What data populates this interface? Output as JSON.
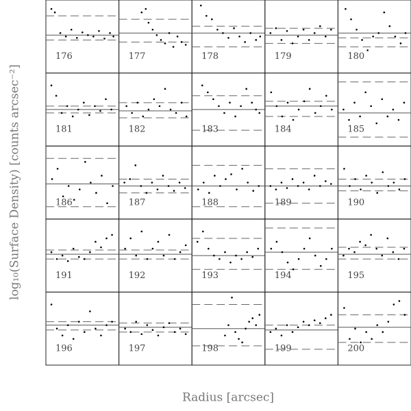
{
  "axes": {
    "xlabel": "Radius [arcsec]",
    "ylabel": "log₁₀(Surface Density) [counts arcsec⁻²]"
  },
  "chart_data": [
    {
      "type": "scatter",
      "label": "176",
      "xlim": [
        0,
        1
      ],
      "ylim": [
        0,
        1
      ],
      "solid": 0.52,
      "dashed": [
        0.8,
        0.45
      ],
      "x": [
        0.05,
        0.1,
        0.18,
        0.26,
        0.34,
        0.42,
        0.5,
        0.58,
        0.66,
        0.74,
        0.82,
        0.9,
        0.95
      ],
      "y": [
        0.9,
        0.85,
        0.55,
        0.5,
        0.6,
        0.48,
        0.56,
        0.52,
        0.5,
        0.58,
        0.47,
        0.55,
        0.5
      ]
    },
    {
      "type": "scatter",
      "label": "177",
      "xlim": [
        0,
        1
      ],
      "ylim": [
        0,
        1
      ],
      "solid": 0.55,
      "dashed": [
        0.75,
        0.42
      ],
      "x": [
        0.3,
        0.36,
        0.4,
        0.46,
        0.52,
        0.58,
        0.64,
        0.7,
        0.76,
        0.82,
        0.88,
        0.94
      ],
      "y": [
        0.85,
        0.9,
        0.7,
        0.6,
        0.52,
        0.45,
        0.4,
        0.55,
        0.35,
        0.5,
        0.42,
        0.38
      ]
    },
    {
      "type": "scatter",
      "label": "178",
      "xlim": [
        0,
        1
      ],
      "ylim": [
        0,
        1
      ],
      "solid": 0.55,
      "dashed": [
        0.65,
        0.35
      ],
      "x": [
        0.1,
        0.18,
        0.26,
        0.34,
        0.42,
        0.5,
        0.58,
        0.66,
        0.74,
        0.82,
        0.9,
        0.96
      ],
      "y": [
        0.95,
        0.8,
        0.75,
        0.6,
        0.55,
        0.48,
        0.62,
        0.5,
        0.42,
        0.55,
        0.45,
        0.5
      ]
    },
    {
      "type": "scatter",
      "label": "179",
      "xlim": [
        0,
        1
      ],
      "ylim": [
        0,
        1
      ],
      "solid": 0.52,
      "dashed": [
        0.62,
        0.4
      ],
      "x": [
        0.05,
        0.13,
        0.21,
        0.29,
        0.37,
        0.45,
        0.53,
        0.61,
        0.69,
        0.77,
        0.85,
        0.93
      ],
      "y": [
        0.55,
        0.62,
        0.45,
        0.58,
        0.4,
        0.5,
        0.6,
        0.45,
        0.55,
        0.65,
        0.5,
        0.6
      ]
    },
    {
      "type": "scatter",
      "label": "180",
      "xlim": [
        0,
        1
      ],
      "ylim": [
        0,
        1
      ],
      "solid": 0.55,
      "dashed": [
        0.48,
        0.35
      ],
      "x": [
        0.08,
        0.16,
        0.24,
        0.32,
        0.4,
        0.48,
        0.56,
        0.64,
        0.72,
        0.8,
        0.88,
        0.95
      ],
      "y": [
        0.9,
        0.75,
        0.6,
        0.45,
        0.3,
        0.5,
        0.55,
        0.85,
        0.65,
        0.5,
        0.4,
        0.55
      ]
    },
    {
      "type": "scatter",
      "label": "181",
      "xlim": [
        0,
        1
      ],
      "ylim": [
        0,
        1
      ],
      "solid": 0.5,
      "dashed": [
        0.55,
        0.45
      ],
      "x": [
        0.05,
        0.12,
        0.2,
        0.28,
        0.36,
        0.44,
        0.52,
        0.6,
        0.68,
        0.76,
        0.84,
        0.92
      ],
      "y": [
        0.85,
        0.7,
        0.45,
        0.55,
        0.4,
        0.5,
        0.6,
        0.42,
        0.55,
        0.48,
        0.65,
        0.5
      ]
    },
    {
      "type": "scatter",
      "label": "182",
      "xlim": [
        0,
        1
      ],
      "ylim": [
        0,
        1
      ],
      "solid": 0.48,
      "dashed": [
        0.6,
        0.38
      ],
      "x": [
        0.08,
        0.16,
        0.24,
        0.32,
        0.4,
        0.48,
        0.56,
        0.64,
        0.72,
        0.8,
        0.88,
        0.95
      ],
      "y": [
        0.55,
        0.45,
        0.6,
        0.4,
        0.5,
        0.65,
        0.55,
        0.8,
        0.5,
        0.45,
        0.6,
        0.4
      ]
    },
    {
      "type": "scatter",
      "label": "183",
      "xlim": [
        0,
        1
      ],
      "ylim": [
        0,
        1
      ],
      "solid": 0.5,
      "dashed": [
        0.7,
        0.2
      ],
      "x": [
        0.12,
        0.2,
        0.28,
        0.36,
        0.44,
        0.52,
        0.6,
        0.68,
        0.76,
        0.84,
        0.9,
        0.95
      ],
      "y": [
        0.85,
        0.75,
        0.65,
        0.55,
        0.45,
        0.6,
        0.4,
        0.55,
        0.8,
        0.6,
        0.5,
        0.45
      ]
    },
    {
      "type": "scatter",
      "label": "184",
      "xlim": [
        0,
        1
      ],
      "ylim": [
        0,
        1
      ],
      "solid": 0.55,
      "dashed": [
        0.62,
        0.4
      ],
      "x": [
        0.06,
        0.14,
        0.22,
        0.3,
        0.38,
        0.46,
        0.54,
        0.62,
        0.7,
        0.78,
        0.86,
        0.94
      ],
      "y": [
        0.75,
        0.55,
        0.4,
        0.6,
        0.35,
        0.5,
        0.62,
        0.8,
        0.45,
        0.55,
        0.7,
        0.5
      ]
    },
    {
      "type": "scatter",
      "label": "185",
      "xlim": [
        0,
        1
      ],
      "ylim": [
        0,
        1
      ],
      "solid": 0.45,
      "dashed": [
        0.9,
        0.1
      ],
      "x": [
        0.05,
        0.13,
        0.21,
        0.29,
        0.37,
        0.45,
        0.53,
        0.61,
        0.69,
        0.77,
        0.85,
        0.93
      ],
      "y": [
        0.5,
        0.35,
        0.6,
        0.4,
        0.75,
        0.55,
        0.3,
        0.65,
        0.4,
        0.5,
        0.35,
        0.6
      ]
    },
    {
      "type": "scatter",
      "label": "186",
      "xlim": [
        0,
        1
      ],
      "ylim": [
        0,
        1
      ],
      "solid": 0.48,
      "dashed": [
        0.85,
        0.15
      ],
      "x": [
        0.06,
        0.14,
        0.22,
        0.3,
        0.38,
        0.46,
        0.54,
        0.62,
        0.7,
        0.78,
        0.86,
        0.94
      ],
      "y": [
        0.55,
        0.7,
        0.3,
        0.45,
        0.25,
        0.4,
        0.8,
        0.5,
        0.35,
        0.6,
        0.2,
        0.45
      ]
    },
    {
      "type": "scatter",
      "label": "187",
      "xlim": [
        0,
        1
      ],
      "ylim": [
        0,
        1
      ],
      "solid": 0.45,
      "dashed": [
        0.55,
        0.35
      ],
      "x": [
        0.05,
        0.13,
        0.21,
        0.29,
        0.37,
        0.45,
        0.53,
        0.61,
        0.69,
        0.77,
        0.85,
        0.93
      ],
      "y": [
        0.5,
        0.55,
        0.75,
        0.45,
        0.35,
        0.5,
        0.4,
        0.6,
        0.45,
        0.38,
        0.5,
        0.42
      ]
    },
    {
      "type": "scatter",
      "label": "188",
      "xlim": [
        0,
        1
      ],
      "ylim": [
        0,
        1
      ],
      "solid": 0.45,
      "dashed": [
        0.75,
        0.15
      ],
      "x": [
        0.06,
        0.14,
        0.22,
        0.3,
        0.38,
        0.46,
        0.54,
        0.62,
        0.7,
        0.78,
        0.86,
        0.94
      ],
      "y": [
        0.4,
        0.5,
        0.35,
        0.6,
        0.45,
        0.55,
        0.62,
        0.4,
        0.7,
        0.5,
        0.38,
        0.45
      ]
    },
    {
      "type": "scatter",
      "label": "189",
      "xlim": [
        0,
        1
      ],
      "ylim": [
        0,
        1
      ],
      "solid": 0.45,
      "dashed": [
        0.7,
        0.2
      ],
      "x": [
        0.05,
        0.13,
        0.21,
        0.29,
        0.37,
        0.45,
        0.53,
        0.61,
        0.69,
        0.77,
        0.85,
        0.93
      ],
      "y": [
        0.45,
        0.4,
        0.5,
        0.42,
        0.55,
        0.45,
        0.5,
        0.4,
        0.6,
        0.45,
        0.52,
        0.48
      ]
    },
    {
      "type": "scatter",
      "label": "190",
      "xlim": [
        0,
        1
      ],
      "ylim": [
        0,
        1
      ],
      "solid": 0.45,
      "dashed": [
        0.55,
        0.38
      ],
      "x": [
        0.06,
        0.14,
        0.22,
        0.3,
        0.38,
        0.46,
        0.54,
        0.62,
        0.7,
        0.78,
        0.86,
        0.94
      ],
      "y": [
        0.7,
        0.45,
        0.55,
        0.4,
        0.6,
        0.5,
        0.35,
        0.65,
        0.45,
        0.5,
        0.4,
        0.55
      ]
    },
    {
      "type": "scatter",
      "label": "191",
      "xlim": [
        0,
        1
      ],
      "ylim": [
        0,
        1
      ],
      "solid": 0.52,
      "dashed": [
        0.58,
        0.45
      ],
      "x": [
        0.05,
        0.13,
        0.21,
        0.29,
        0.37,
        0.45,
        0.53,
        0.61,
        0.69,
        0.77,
        0.85,
        0.93
      ],
      "y": [
        0.55,
        0.45,
        0.5,
        0.42,
        0.6,
        0.48,
        0.45,
        0.55,
        0.7,
        0.62,
        0.75,
        0.8
      ]
    },
    {
      "type": "scatter",
      "label": "192",
      "xlim": [
        0,
        1
      ],
      "ylim": [
        0,
        1
      ],
      "solid": 0.52,
      "dashed": [
        0.58,
        0.45
      ],
      "x": [
        0.06,
        0.14,
        0.22,
        0.3,
        0.38,
        0.46,
        0.54,
        0.62,
        0.7,
        0.78,
        0.86,
        0.94
      ],
      "y": [
        0.6,
        0.75,
        0.5,
        0.85,
        0.45,
        0.6,
        0.7,
        0.5,
        0.8,
        0.45,
        0.55,
        0.65
      ]
    },
    {
      "type": "scatter",
      "label": "193",
      "xlim": [
        0,
        1
      ],
      "ylim": [
        0,
        1
      ],
      "solid": 0.5,
      "dashed": [
        0.75,
        0.3
      ],
      "x": [
        0.05,
        0.13,
        0.21,
        0.29,
        0.37,
        0.45,
        0.53,
        0.61,
        0.69,
        0.77,
        0.85,
        0.93
      ],
      "y": [
        0.7,
        0.85,
        0.6,
        0.5,
        0.45,
        0.55,
        0.4,
        0.5,
        0.45,
        0.55,
        0.48,
        0.6
      ]
    },
    {
      "type": "scatter",
      "label": "194",
      "xlim": [
        0,
        1
      ],
      "ylim": [
        0,
        1
      ],
      "solid": 0.55,
      "dashed": [
        0.9,
        0.3
      ],
      "x": [
        0.06,
        0.14,
        0.22,
        0.3,
        0.38,
        0.46,
        0.54,
        0.62,
        0.7,
        0.78,
        0.86,
        0.94
      ],
      "y": [
        0.6,
        0.7,
        0.55,
        0.4,
        0.3,
        0.45,
        0.6,
        0.75,
        0.5,
        0.35,
        0.45,
        0.6
      ]
    },
    {
      "type": "scatter",
      "label": "195",
      "xlim": [
        0,
        1
      ],
      "ylim": [
        0,
        1
      ],
      "solid": 0.52,
      "dashed": [
        0.62,
        0.45
      ],
      "x": [
        0.05,
        0.13,
        0.21,
        0.29,
        0.37,
        0.45,
        0.53,
        0.61,
        0.69,
        0.77,
        0.85,
        0.93
      ],
      "y": [
        0.5,
        0.6,
        0.55,
        0.7,
        0.65,
        0.8,
        0.6,
        0.5,
        0.75,
        0.55,
        0.45,
        0.6
      ]
    },
    {
      "type": "scatter",
      "label": "196",
      "xlim": [
        0,
        1
      ],
      "ylim": [
        0,
        1
      ],
      "solid": 0.55,
      "dashed": [
        0.6,
        0.48
      ],
      "x": [
        0.05,
        0.13,
        0.21,
        0.29,
        0.37,
        0.45,
        0.53,
        0.61,
        0.69,
        0.77,
        0.85,
        0.93
      ],
      "y": [
        0.85,
        0.5,
        0.4,
        0.55,
        0.35,
        0.6,
        0.45,
        0.75,
        0.5,
        0.4,
        0.55,
        0.6
      ]
    },
    {
      "type": "scatter",
      "label": "197",
      "xlim": [
        0,
        1
      ],
      "ylim": [
        0,
        1
      ],
      "solid": 0.52,
      "dashed": [
        0.58,
        0.45
      ],
      "x": [
        0.06,
        0.14,
        0.22,
        0.3,
        0.38,
        0.46,
        0.54,
        0.62,
        0.7,
        0.78,
        0.86,
        0.94
      ],
      "y": [
        0.5,
        0.45,
        0.6,
        0.42,
        0.55,
        0.48,
        0.4,
        0.52,
        0.58,
        0.45,
        0.5,
        0.42
      ]
    },
    {
      "type": "scatter",
      "label": "198",
      "xlim": [
        0,
        1
      ],
      "ylim": [
        0,
        1
      ],
      "solid": 0.5,
      "dashed": [
        0.85,
        0.25
      ],
      "x": [
        0.45,
        0.5,
        0.55,
        0.6,
        0.65,
        0.7,
        0.75,
        0.8,
        0.85,
        0.9,
        0.95
      ],
      "y": [
        0.4,
        0.55,
        0.95,
        0.45,
        0.35,
        0.3,
        0.5,
        0.6,
        0.65,
        0.55,
        0.7
      ]
    },
    {
      "type": "scatter",
      "label": "199",
      "xlim": [
        0,
        1
      ],
      "ylim": [
        0,
        1
      ],
      "solid": 0.48,
      "dashed": [
        0.55,
        0.2
      ],
      "x": [
        0.05,
        0.13,
        0.21,
        0.29,
        0.37,
        0.45,
        0.53,
        0.61,
        0.69,
        0.77,
        0.85,
        0.93
      ],
      "y": [
        0.45,
        0.5,
        0.4,
        0.55,
        0.45,
        0.52,
        0.6,
        0.55,
        0.62,
        0.58,
        0.65,
        0.7
      ]
    },
    {
      "type": "scatter",
      "label": "200",
      "xlim": [
        0,
        1
      ],
      "ylim": [
        0,
        1
      ],
      "solid": 0.52,
      "dashed": [
        0.7,
        0.3
      ],
      "x": [
        0.06,
        0.14,
        0.22,
        0.3,
        0.38,
        0.46,
        0.54,
        0.62,
        0.7,
        0.78,
        0.86,
        0.94
      ],
      "y": [
        0.8,
        0.35,
        0.5,
        0.3,
        0.45,
        0.35,
        0.55,
        0.45,
        0.6,
        0.85,
        0.9,
        0.7
      ]
    }
  ]
}
